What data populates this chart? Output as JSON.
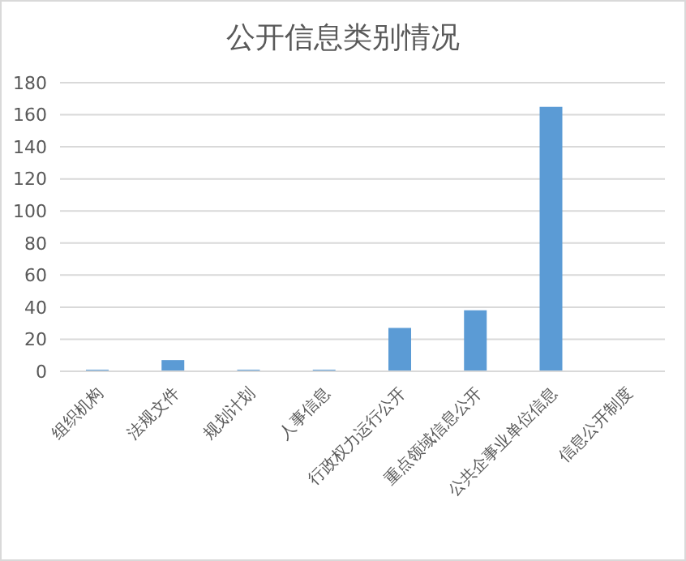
{
  "chart_data": {
    "type": "bar",
    "title": "公开信息类别情况",
    "categories": [
      "组织机构",
      "法规文件",
      "规划计划",
      "人事信息",
      "行政权力运行公开",
      "重点领域信息公开",
      "公共企事业单位信息",
      "信息公开制度"
    ],
    "values": [
      1,
      7,
      1,
      1,
      27,
      38,
      165,
      0
    ],
    "color": "#5b9bd5",
    "ylim": [
      0,
      180
    ],
    "yticks": [
      0,
      20,
      40,
      60,
      80,
      100,
      120,
      140,
      160,
      180
    ],
    "grid": "y"
  }
}
